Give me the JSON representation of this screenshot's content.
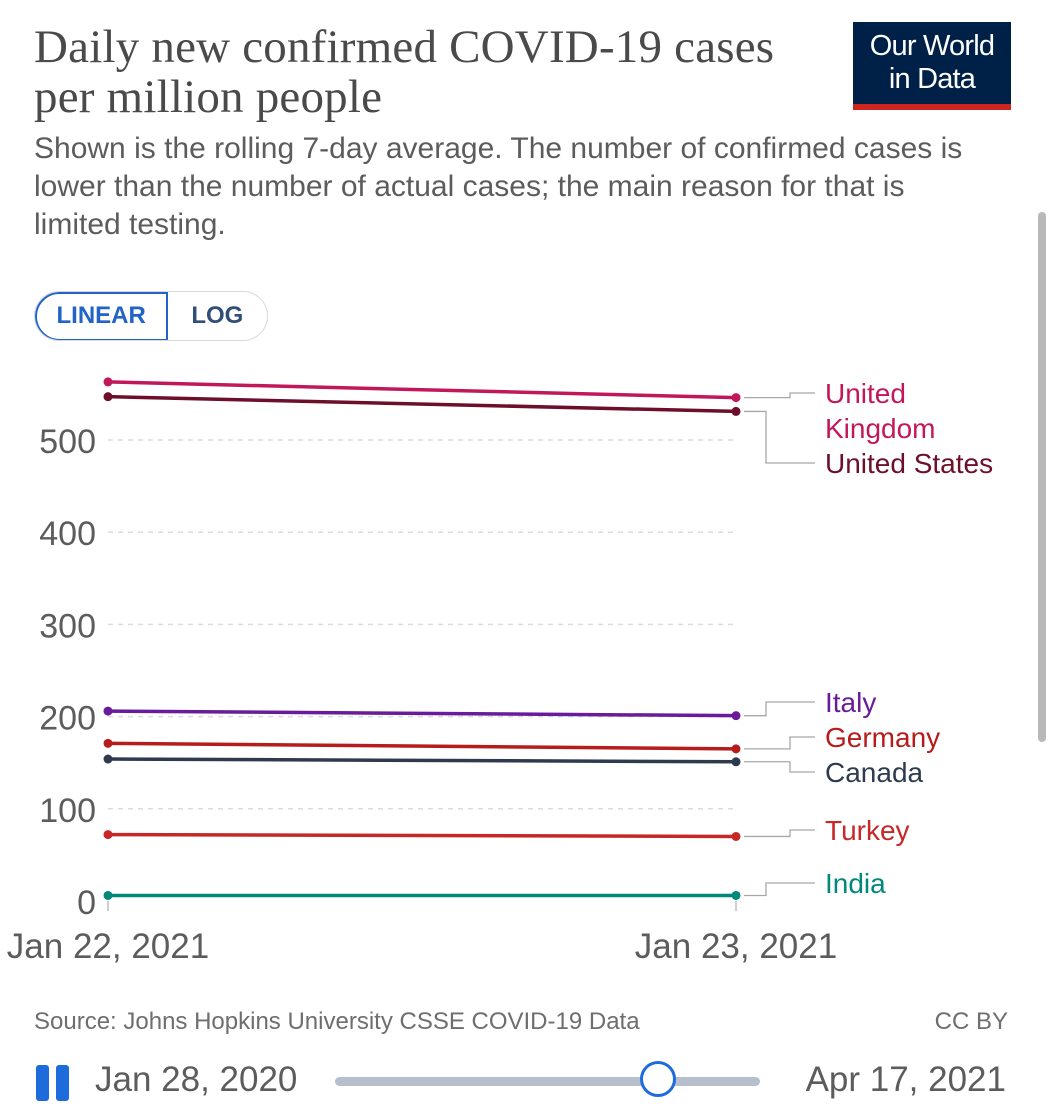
{
  "header": {
    "title": "Daily new confirmed COVID-19 cases per million people",
    "subtitle": "Shown is the rolling 7-day average. The number of confirmed cases is lower than the number of actual cases; the main reason for that is limited testing.",
    "logo_line1": "Our World",
    "logo_line2": "in Data"
  },
  "scale_toggle": {
    "linear": "LINEAR",
    "log": "LOG",
    "selected": "LINEAR"
  },
  "chart_data": {
    "type": "line",
    "x": [
      "Jan 22, 2021",
      "Jan 23, 2021"
    ],
    "ylim": [
      0,
      580
    ],
    "yticks": [
      0,
      100,
      200,
      300,
      400,
      500
    ],
    "grid": true,
    "legend": "right, labels at line ends",
    "series": [
      {
        "name": "United Kingdom",
        "values": [
          563,
          546
        ],
        "color": "#c2185b"
      },
      {
        "name": "United States",
        "values": [
          547,
          531
        ],
        "color": "#6d0f2a"
      },
      {
        "name": "Italy",
        "values": [
          206,
          201
        ],
        "color": "#6a1b9a"
      },
      {
        "name": "Germany",
        "values": [
          171,
          165
        ],
        "color": "#b71c1c"
      },
      {
        "name": "Canada",
        "values": [
          154,
          151
        ],
        "color": "#2e3b4e"
      },
      {
        "name": "Turkey",
        "values": [
          72,
          70
        ],
        "color": "#c62828"
      },
      {
        "name": "India",
        "values": [
          6,
          6
        ],
        "color": "#00897b"
      }
    ]
  },
  "footer": {
    "source": "Source: Johns Hopkins University CSSE COVID-19 Data",
    "license": "CC BY"
  },
  "timeline": {
    "start": "Jan 28, 2020",
    "end": "Apr 17, 2021",
    "position": 0.76
  }
}
